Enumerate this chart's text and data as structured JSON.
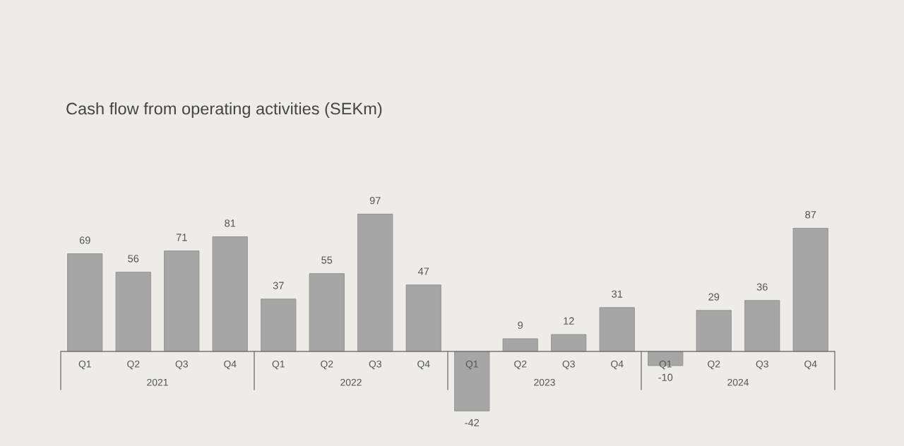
{
  "chart_data": {
    "type": "bar",
    "title": "Cash flow from operating activities (SEKm)",
    "categories": [
      "Q1",
      "Q2",
      "Q3",
      "Q4",
      "Q1",
      "Q2",
      "Q3",
      "Q4",
      "Q1",
      "Q2",
      "Q3",
      "Q4",
      "Q1",
      "Q2",
      "Q3",
      "Q4"
    ],
    "values": [
      69,
      56,
      71,
      81,
      37,
      55,
      97,
      47,
      -42,
      9,
      12,
      31,
      -10,
      29,
      36,
      87
    ],
    "color": "#a6a6a6",
    "data_labels": true,
    "annotations": [
      "2021",
      "2022",
      "2023",
      "2024"
    ]
  }
}
